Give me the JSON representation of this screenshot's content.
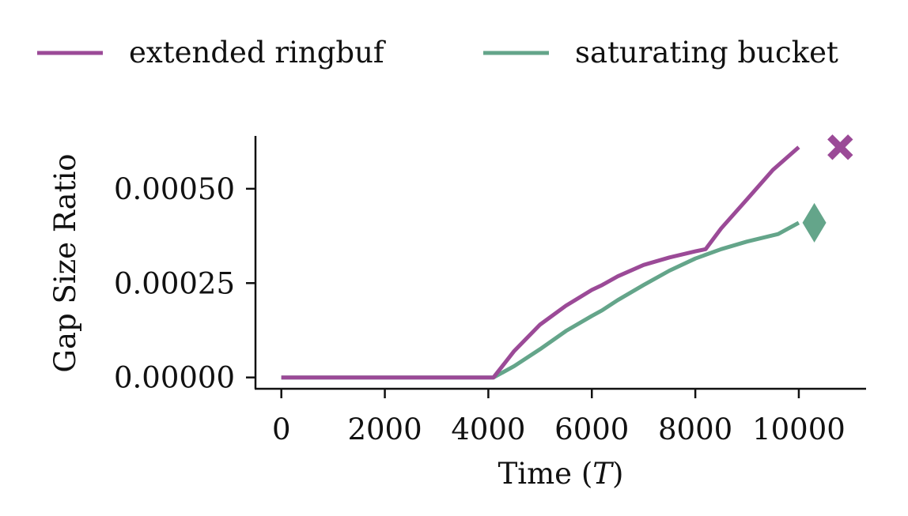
{
  "chart_data": {
    "type": "line",
    "title": "",
    "xlabel": "Time (T)",
    "xlabel_main": "Time (",
    "xlabel_var": "T",
    "xlabel_end": ")",
    "ylabel": "Gap Size Ratio",
    "xlim": [
      -500,
      11300
    ],
    "ylim": [
      -3e-05,
      0.00064
    ],
    "xticks": [
      0,
      2000,
      4000,
      6000,
      8000,
      10000
    ],
    "xtick_labels": [
      "0",
      "2000",
      "4000",
      "6000",
      "8000",
      "10000"
    ],
    "yticks": [
      0,
      0.00025,
      0.0005
    ],
    "ytick_labels": [
      "0.00000",
      "0.00025",
      "0.00050"
    ],
    "grid": false,
    "legend_position": "top",
    "series": [
      {
        "name": "extended ringbuf",
        "color": "#9b4a97",
        "marker": "x",
        "marker_point": {
          "x": 10800,
          "y": 0.00061
        },
        "x": [
          0,
          4100,
          4500,
          5000,
          5500,
          6000,
          6200,
          6500,
          7000,
          7500,
          8000,
          8200,
          8500,
          9000,
          9500,
          10000
        ],
        "y": [
          0,
          0,
          7e-05,
          0.00014,
          0.00019,
          0.000232,
          0.000245,
          0.000268,
          0.000298,
          0.000318,
          0.000334,
          0.00034,
          0.000395,
          0.000472,
          0.00055,
          0.00061
        ]
      },
      {
        "name": "saturating bucket",
        "color": "#64a58a",
        "marker": "diamond",
        "marker_point": {
          "x": 10300,
          "y": 0.00041
        },
        "x": [
          0,
          4100,
          4500,
          5000,
          5500,
          6000,
          6200,
          6500,
          7000,
          7500,
          8000,
          8500,
          9000,
          9600,
          10000
        ],
        "y": [
          0,
          0,
          3e-05,
          7.5e-05,
          0.000123,
          0.000163,
          0.000178,
          0.000205,
          0.000245,
          0.000283,
          0.000315,
          0.00034,
          0.00036,
          0.00038,
          0.00041
        ]
      }
    ]
  }
}
